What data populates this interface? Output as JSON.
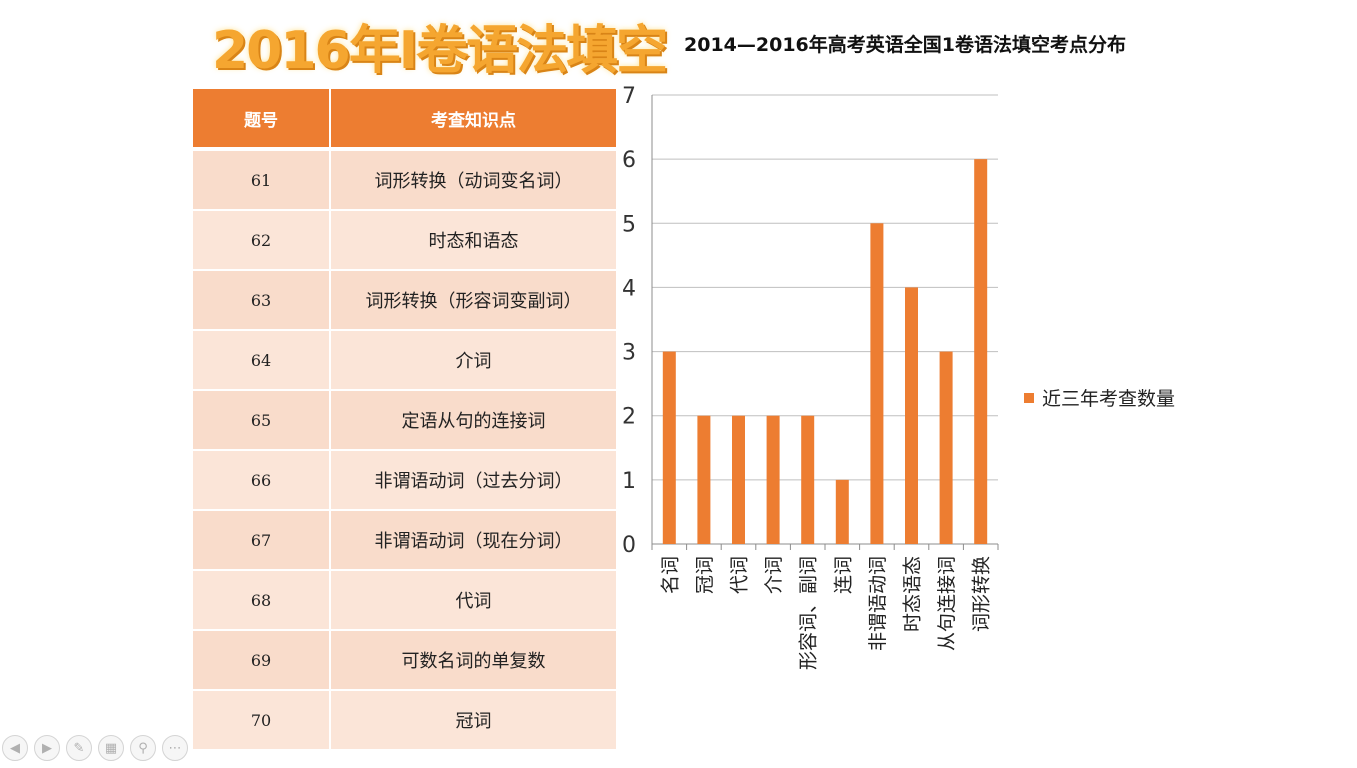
{
  "slide_title": "2016年I卷语法填空",
  "table": {
    "headers": [
      "题号",
      "考查知识点"
    ],
    "rows": [
      {
        "num": "61",
        "point": "词形转换（动词变名词）"
      },
      {
        "num": "62",
        "point": "时态和语态"
      },
      {
        "num": "63",
        "point": "词形转换（形容词变副词）"
      },
      {
        "num": "64",
        "point": "介词"
      },
      {
        "num": "65",
        "point": "定语从句的连接词"
      },
      {
        "num": "66",
        "point": "非谓语动词（过去分词）"
      },
      {
        "num": "67",
        "point": "非谓语动词（现在分词）"
      },
      {
        "num": "68",
        "point": "代词"
      },
      {
        "num": "69",
        "point": "可数名词的单复数"
      },
      {
        "num": "70",
        "point": "冠词"
      }
    ]
  },
  "chart_data": {
    "type": "bar",
    "title": "2014—2016年高考英语全国1卷语法填空考点分布",
    "categories": [
      "名词",
      "冠词",
      "代词",
      "介词",
      "形容词、副词",
      "连词",
      "非谓语动词",
      "时态语态",
      "从句连接词",
      "词形转换"
    ],
    "series": [
      {
        "name": "近三年考查数量",
        "values": [
          3,
          2,
          2,
          2,
          2,
          1,
          5,
          4,
          3,
          6
        ]
      }
    ],
    "ylim": [
      0,
      7
    ],
    "yticks": [
      0,
      1,
      2,
      3,
      4,
      5,
      6,
      7
    ],
    "grid": true,
    "legend": "right",
    "color": "#ed7d31"
  },
  "toolbar": {
    "prev_icon": "prev-icon",
    "next_icon": "next-icon",
    "pen_icon": "pen-icon",
    "slides_icon": "slides-icon",
    "zoom_icon": "zoom-icon",
    "more_icon": "more-icon"
  }
}
